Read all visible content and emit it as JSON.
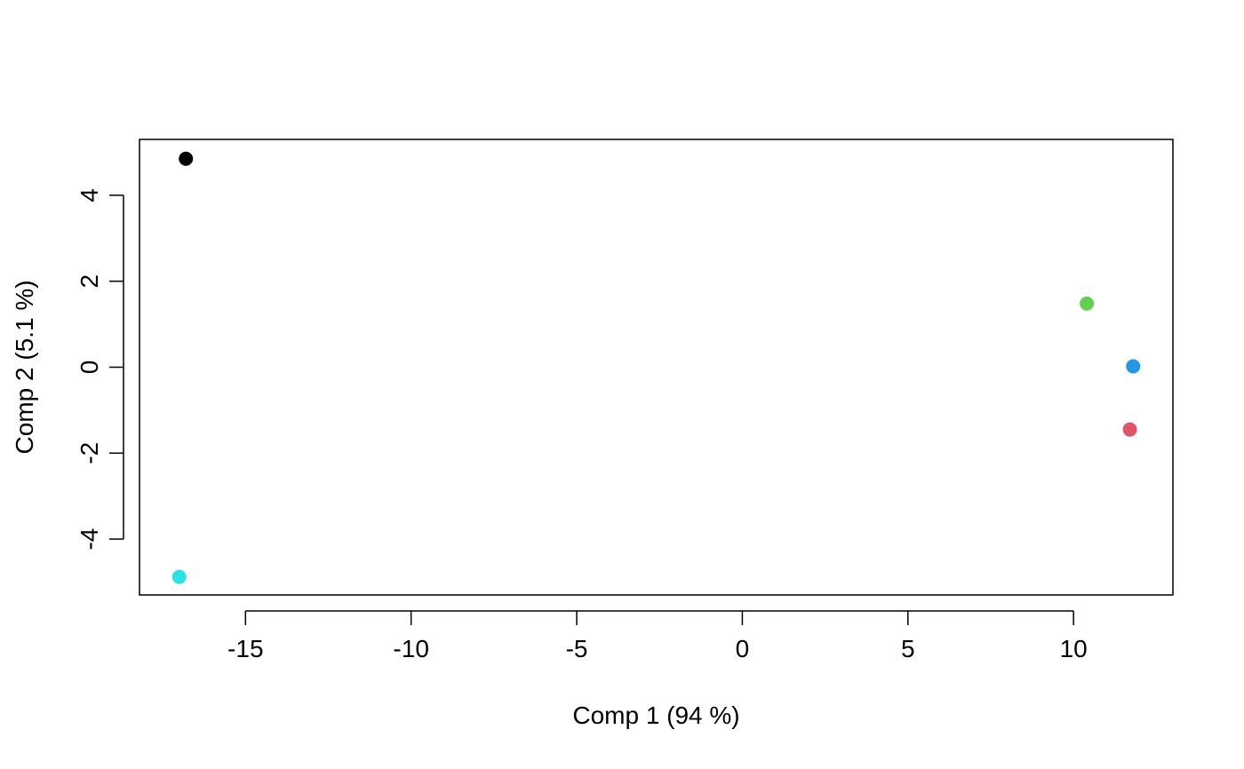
{
  "chart_data": {
    "type": "scatter",
    "title": "",
    "xlabel": "Comp 1 (94 %)",
    "ylabel": "Comp 2 (5.1 %)",
    "xlim": [
      -18.2,
      13.0
    ],
    "ylim": [
      -5.3,
      5.3
    ],
    "x_ticks": [
      -15,
      -10,
      -5,
      0,
      5,
      10
    ],
    "x_tick_labels": [
      "-15",
      "-10",
      "-5",
      "0",
      "5",
      "10"
    ],
    "y_ticks": [
      -4,
      -2,
      0,
      2,
      4
    ],
    "y_tick_labels": [
      "-4",
      "-2",
      "0",
      "2",
      "4"
    ],
    "grid": false,
    "legend": "none",
    "points": [
      {
        "x": -16.8,
        "y": 4.85,
        "color": "#000000"
      },
      {
        "x": -17.0,
        "y": -4.88,
        "color": "#28e2e5"
      },
      {
        "x": 10.4,
        "y": 1.48,
        "color": "#61d04f"
      },
      {
        "x": 11.8,
        "y": 0.02,
        "color": "#2297e6"
      },
      {
        "x": 11.7,
        "y": -1.45,
        "color": "#df536b"
      }
    ]
  }
}
